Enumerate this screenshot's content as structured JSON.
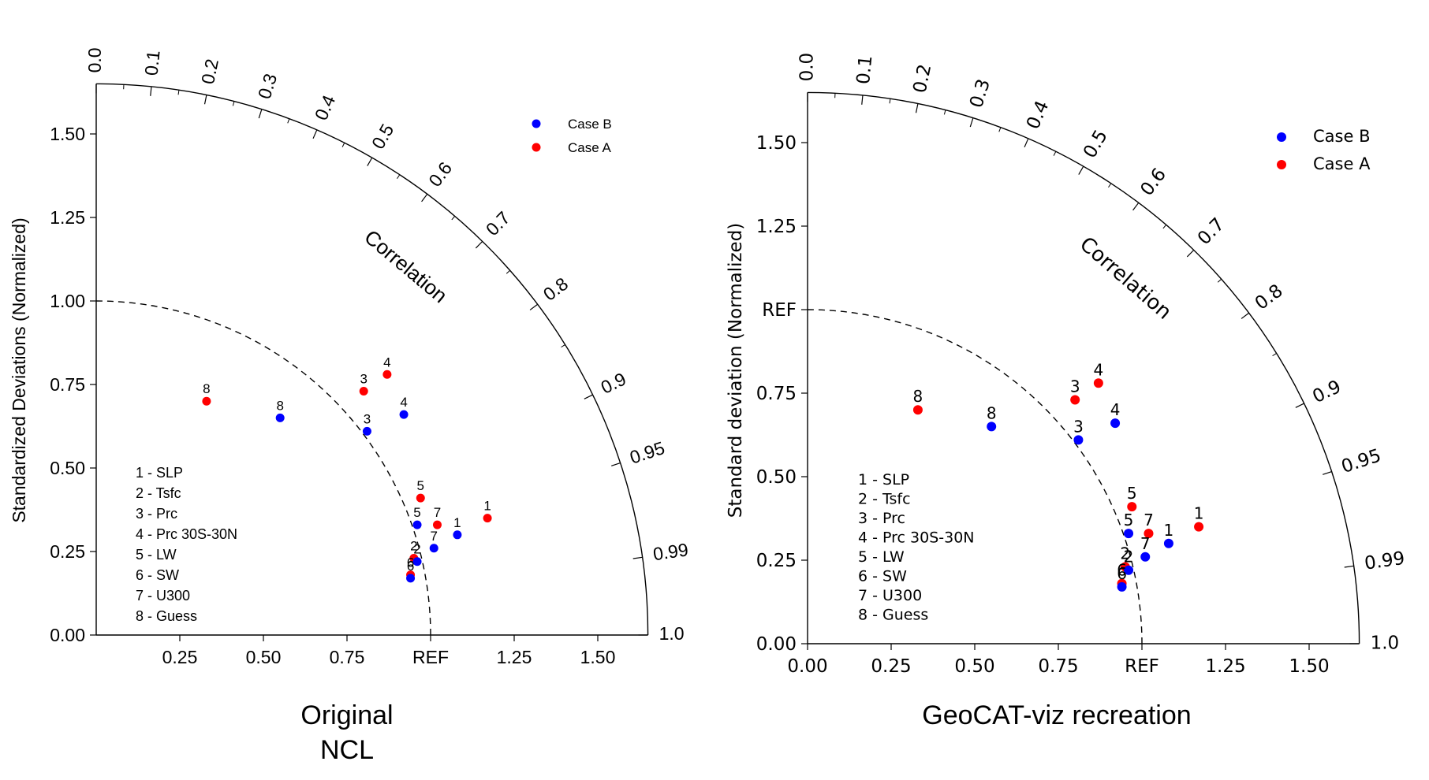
{
  "captions": {
    "left": [
      "Original",
      "NCL"
    ],
    "right": [
      "GeoCAT-viz recreation"
    ]
  },
  "colors": {
    "case_a": "#ff0000",
    "case_b": "#0000ff",
    "axes": "#000000"
  },
  "chart_data": [
    {
      "type": "scatter",
      "subtype": "taylor-diagram",
      "ylabel": "Standardized Deviations (Normalized)",
      "corr_label": "Correlation",
      "std_ticks": [
        "0.25",
        "0.50",
        "0.75",
        "REF",
        "1.25",
        "1.50"
      ],
      "y_ticks": [
        "0.00",
        "0.25",
        "0.50",
        "0.75",
        "1.00",
        "1.25",
        "1.50"
      ],
      "corr_ticks": [
        "0.0",
        "0.1",
        "0.2",
        "0.3",
        "0.4",
        "0.5",
        "0.6",
        "0.7",
        "0.8",
        "0.9",
        "0.95",
        "0.99",
        "1.0"
      ],
      "ref_arc": 1.0,
      "max_std": 1.65,
      "legend": [
        "Case B",
        "Case A"
      ],
      "legend_placement": "top-right",
      "variables": [
        "1 - SLP",
        "2 - Tsfc",
        "3 - Prc",
        "4 - Prc 30S-30N",
        "5 - LW",
        "6 - SW",
        "7 - U300",
        "8 - Guess"
      ],
      "series": [
        {
          "name": "Case A",
          "color": "#ff0000",
          "points": [
            {
              "label": "1",
              "x": 1.17,
              "y": 0.35
            },
            {
              "label": "2",
              "x": 0.95,
              "y": 0.23
            },
            {
              "label": "3",
              "x": 0.8,
              "y": 0.73
            },
            {
              "label": "4",
              "x": 0.87,
              "y": 0.78
            },
            {
              "label": "5",
              "x": 0.97,
              "y": 0.41
            },
            {
              "label": "6",
              "x": 0.94,
              "y": 0.18
            },
            {
              "label": "7",
              "x": 1.02,
              "y": 0.33
            },
            {
              "label": "8",
              "x": 0.33,
              "y": 0.7
            }
          ]
        },
        {
          "name": "Case B",
          "color": "#0000ff",
          "points": [
            {
              "label": "1",
              "x": 1.08,
              "y": 0.3
            },
            {
              "label": "2",
              "x": 0.96,
              "y": 0.22
            },
            {
              "label": "3",
              "x": 0.81,
              "y": 0.61
            },
            {
              "label": "4",
              "x": 0.92,
              "y": 0.66
            },
            {
              "label": "5",
              "x": 0.96,
              "y": 0.33
            },
            {
              "label": "6",
              "x": 0.94,
              "y": 0.17
            },
            {
              "label": "7",
              "x": 1.01,
              "y": 0.26
            },
            {
              "label": "8",
              "x": 0.55,
              "y": 0.65
            }
          ]
        }
      ]
    },
    {
      "type": "scatter",
      "subtype": "taylor-diagram",
      "ylabel": "Standard deviation (Normalized)",
      "corr_label": "Correlation",
      "std_ticks": [
        "0.00",
        "0.25",
        "0.50",
        "0.75",
        "REF",
        "1.25",
        "1.50"
      ],
      "y_ticks": [
        "0.00",
        "0.25",
        "0.50",
        "0.75",
        "REF",
        "1.25",
        "1.50"
      ],
      "corr_ticks": [
        "0.0",
        "0.1",
        "0.2",
        "0.3",
        "0.4",
        "0.5",
        "0.6",
        "0.7",
        "0.8",
        "0.9",
        "0.95",
        "0.99",
        "1.0"
      ],
      "ref_arc": 1.0,
      "max_std": 1.65,
      "legend": [
        "Case B",
        "Case A"
      ],
      "legend_placement": "top-right",
      "variables": [
        "1 - SLP",
        "2 - Tsfc",
        "3 - Prc",
        "4 - Prc 30S-30N",
        "5 - LW",
        "6 - SW",
        "7 - U300",
        "8 - Guess"
      ],
      "series": [
        {
          "name": "Case A",
          "color": "#ff0000",
          "points": [
            {
              "label": "1",
              "x": 1.17,
              "y": 0.35
            },
            {
              "label": "2",
              "x": 0.95,
              "y": 0.23
            },
            {
              "label": "3",
              "x": 0.8,
              "y": 0.73
            },
            {
              "label": "4",
              "x": 0.87,
              "y": 0.78
            },
            {
              "label": "5",
              "x": 0.97,
              "y": 0.41
            },
            {
              "label": "6",
              "x": 0.94,
              "y": 0.18
            },
            {
              "label": "7",
              "x": 1.02,
              "y": 0.33
            },
            {
              "label": "8",
              "x": 0.33,
              "y": 0.7
            }
          ]
        },
        {
          "name": "Case B",
          "color": "#0000ff",
          "points": [
            {
              "label": "1",
              "x": 1.08,
              "y": 0.3
            },
            {
              "label": "2",
              "x": 0.96,
              "y": 0.22
            },
            {
              "label": "3",
              "x": 0.81,
              "y": 0.61
            },
            {
              "label": "4",
              "x": 0.92,
              "y": 0.66
            },
            {
              "label": "5",
              "x": 0.96,
              "y": 0.33
            },
            {
              "label": "6",
              "x": 0.94,
              "y": 0.17
            },
            {
              "label": "7",
              "x": 1.01,
              "y": 0.26
            },
            {
              "label": "8",
              "x": 0.55,
              "y": 0.65
            }
          ]
        }
      ]
    }
  ]
}
